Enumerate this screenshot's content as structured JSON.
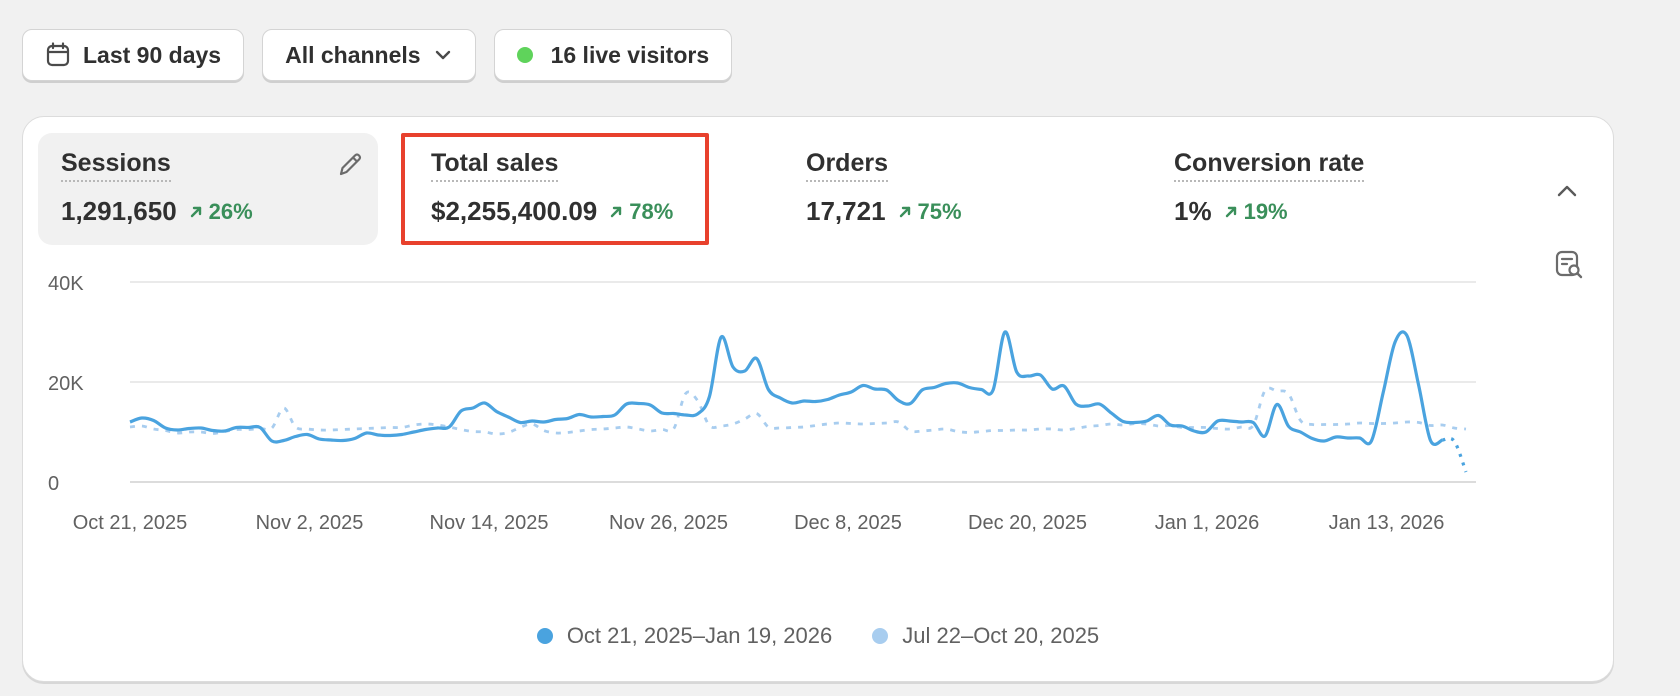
{
  "toolbar": {
    "date_range": "Last 90 days",
    "channels": "All channels",
    "live_visitors": "16 live visitors",
    "live_dot_color": "#5fd35b"
  },
  "metrics": [
    {
      "label": "Sessions",
      "value": "1,291,650",
      "delta": "26%"
    },
    {
      "label": "Total sales",
      "value": "$2,255,400.09",
      "delta": "78%"
    },
    {
      "label": "Orders",
      "value": "17,721",
      "delta": "75%"
    },
    {
      "label": "Conversion rate",
      "value": "1%",
      "delta": "19%"
    }
  ],
  "colors": {
    "current": "#4aa3df",
    "previous": "#a8cdef",
    "positive": "#3a8f5a",
    "highlight": "#e8412d"
  },
  "chart_data": {
    "type": "line",
    "x_tick_labels": [
      "Oct 21, 2025",
      "Nov 2, 2025",
      "Nov 14, 2025",
      "Nov 26, 2025",
      "Dec 8, 2025",
      "Dec 20, 2025",
      "Jan 1, 2026",
      "Jan 13, 2026"
    ],
    "y_tick_labels": [
      "40K",
      "20K",
      "0"
    ],
    "ylim": [
      0,
      40000
    ],
    "grid": true,
    "legend_position": "bottom",
    "series": [
      {
        "name": "Oct 21, 2025–Jan 19, 2026",
        "style": "solid",
        "values": [
          12000,
          12800,
          12300,
          10800,
          10400,
          10700,
          10800,
          10300,
          10200,
          10900,
          10900,
          10900,
          8200,
          8300,
          9100,
          9500,
          8600,
          8400,
          8300,
          8700,
          9800,
          9400,
          9300,
          9500,
          10000,
          10500,
          10800,
          11000,
          14200,
          14800,
          15800,
          14100,
          13000,
          11900,
          12200,
          12000,
          12500,
          12700,
          13500,
          13000,
          13100,
          13400,
          15600,
          15700,
          15400,
          13800,
          13700,
          13400,
          13600,
          17000,
          29000,
          23000,
          22200,
          24700,
          18500,
          16800,
          15800,
          16200,
          16100,
          16500,
          17400,
          18000,
          19300,
          18600,
          18400,
          16300,
          15700,
          18400,
          18900,
          19700,
          19800,
          18900,
          18500,
          18400,
          30000,
          22000,
          21200,
          21400,
          18600,
          19200,
          15600,
          15200,
          15600,
          13800,
          12100,
          11900,
          12200,
          13300,
          11400,
          11200,
          10200,
          10000,
          12200,
          12200,
          12000,
          11900,
          9200,
          15500,
          11100,
          10000,
          8700,
          8200,
          9000,
          8800,
          8800,
          8200,
          17900,
          28000,
          29300,
          19300,
          8300,
          8400,
          8200,
          2000
        ]
      },
      {
        "name": "Jul 22–Oct 20, 2025",
        "style": "dashed",
        "values": [
          11000,
          11200,
          10600,
          10300,
          9800,
          10000,
          10000,
          9700,
          10100,
          10500,
          10500,
          10700,
          10800,
          14800,
          11000,
          10600,
          10400,
          10400,
          10500,
          10600,
          10700,
          10800,
          10900,
          10900,
          11400,
          11600,
          11400,
          11000,
          10500,
          10100,
          10000,
          9600,
          9900,
          10900,
          11600,
          10300,
          9800,
          9900,
          10200,
          10500,
          10600,
          10800,
          11000,
          10600,
          10200,
          10500,
          10700,
          17700,
          16300,
          11300,
          11200,
          11600,
          12600,
          13700,
          11000,
          10800,
          10900,
          11000,
          11300,
          11600,
          11800,
          11700,
          11600,
          11700,
          11800,
          12000,
          10200,
          10200,
          10400,
          10600,
          10100,
          9900,
          10100,
          10300,
          10300,
          10400,
          10400,
          10600,
          10600,
          10400,
          10700,
          11100,
          11300,
          11600,
          11400,
          11700,
          11600,
          11200,
          11300,
          10900,
          10900,
          10900,
          10700,
          10600,
          11000,
          11300,
          18300,
          18200,
          17600,
          12300,
          11500,
          11500,
          11500,
          11600,
          11800,
          11700,
          11700,
          11800,
          12000,
          11900,
          11300,
          11400,
          10800,
          10600
        ]
      }
    ]
  }
}
